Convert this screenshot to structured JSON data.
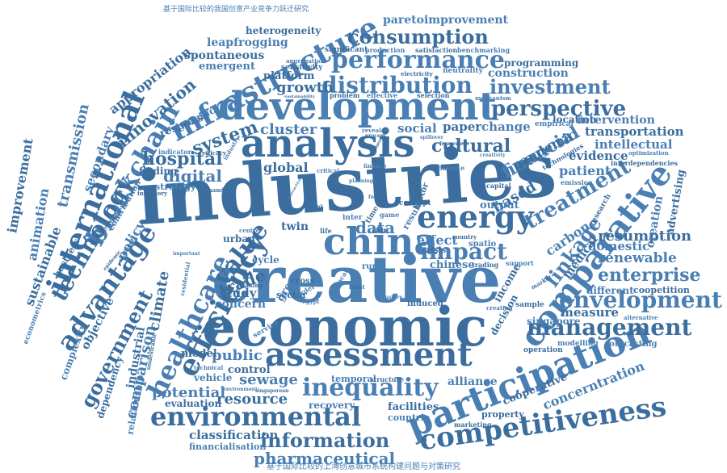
{
  "colors": {
    "word_primary": "#4a7fb3",
    "word_dark": "#3b6e9e",
    "background": "#ffffff"
  },
  "cloud": {
    "chinese_top": "基于国际比较的我国创意产业竞争力跃迁研究",
    "chinese_bottom": "基于国际比较的上海创意城市系统构建问题与对策研究",
    "words": {
      "industries": "industries",
      "creative": "creative",
      "economic": "economic",
      "development": "development",
      "analysis": "analysis",
      "china": "china",
      "assessment": "assessment",
      "participation": "participation",
      "competitiveness": "competitiveness",
      "comparative": "comparative",
      "environmental": "environmental",
      "infrastructure": "infrastructure",
      "international": "international",
      "blockchain": "blockchain",
      "energy": "energy",
      "performance": "performance",
      "consumption": "consumption",
      "distribution": "distribution",
      "management": "management",
      "envelopment": "envelopment",
      "efficiency": "efficiency",
      "healthcare": "healthcare",
      "advantage": "advantage",
      "inequality": "inequality",
      "information": "information",
      "pharmaceutical": "pharmaceutical",
      "technology": "technology",
      "impact": "impact",
      "value": "value",
      "treatment": "treatment",
      "perspective": "perspective",
      "investment": "investment",
      "innovation": "innovation",
      "linkage": "linkage",
      "government": "government",
      "enterprise": "enterprise",
      "resumption": "resumption",
      "renewable": "renewable",
      "cultural": "cultural",
      "financial": "financial",
      "hospital": "hospital",
      "digital": "digital",
      "system": "system",
      "cluster": "cluster",
      "growth": "growth",
      "data": "data",
      "trade": "trade",
      "sewage": "sewage",
      "resource": "resource",
      "potential": "potential",
      "classification": "classification",
      "public": "public",
      "control": "control",
      "concern": "concern",
      "study": "study",
      "comparison": "comparison",
      "climate": "climate",
      "transmission": "transmission",
      "improvement": "improvement",
      "animation": "animation",
      "sustainable": "sustainable",
      "secondary": "secondary",
      "appropriation": "appropriation",
      "leapfrogging": "leapfrogging",
      "spontaneous": "spontaneous",
      "emergent": "emergent",
      "platform": "platform",
      "paretoimprovement": "paretoimprovement",
      "heterogeneity": "heterogeneity",
      "construction": "construction",
      "programming": "programming",
      "intervention": "intervention",
      "transportation": "transportation",
      "intellectual": "intellectual",
      "evidence": "evidence",
      "patient": "patient",
      "pandemic": "pandemic",
      "carbon": "carbon",
      "measure": "measure",
      "domestic": "domestic",
      "medical": "medical",
      "concerntration": "concerntration",
      "cooperative": "cooperative",
      "alliance": "alliance",
      "facilities": "facilities",
      "recovery": "recovery",
      "evaluation": "evaluation",
      "vehicle": "vehicle",
      "model": "model",
      "policy": "policy",
      "objective": "objective",
      "complexity": "complexity",
      "dependency": "dependency",
      "relationship": "relationship",
      "industrial": "industrial",
      "social": "social",
      "paper": "paper",
      "change": "change",
      "global": "global",
      "effect": "effect",
      "based": "based",
      "output": "output",
      "twin": "twin",
      "cycle": "cycle",
      "location": "location",
      "empirical": "empirical",
      "response": "response",
      "dynamic": "dynamic",
      "finding": "finding",
      "strategy": "strategy",
      "urban": "urban",
      "green": "green",
      "sector": "sector",
      "chinese": "chinese",
      "income": "income",
      "different": "different",
      "coopetition": "coopetition",
      "creation": "creation",
      "advertising": "advertising",
      "singapore": "singapore",
      "decision": "decision",
      "forecasting": "forecasting",
      "operation": "operation",
      "modelling": "modelling",
      "property": "property",
      "countrie": "countrie",
      "marketing": "marketing",
      "temporal": "temporal",
      "structure": "structure",
      "financialisation": "financialisation",
      "significant": "significant",
      "production": "production",
      "satisfaction": "satisfaction",
      "benchmarking": "benchmarking",
      "sensitivity": "sensitivity",
      "neutrality": "neutrality",
      "electricity": "electricity",
      "aggregation": "aggregation",
      "problem": "problem",
      "effective": "effective",
      "selection": "selection",
      "mechanism": "mechanism",
      "interdependencies": "interdependencies",
      "optimization": "optimization",
      "technologies": "technologies",
      "emission": "emission",
      "research": "research",
      "alternative": "alternative",
      "crisis": "crisis",
      "rural": "rural",
      "trading": "trading",
      "support": "support",
      "sample": "sample",
      "creating": "creating",
      "induced": "induced",
      "service": "service",
      "business": "business",
      "econometrics": "econometrics",
      "wastewater": "wastewater",
      "contribution": "contribution",
      "inventory": "inventory",
      "indicator": "indicator",
      "efficacy": "efficacy",
      "industry": "industry",
      "capital": "capital",
      "finance": "finance",
      "concept": "concept",
      "result": "result",
      "factor": "factor",
      "spatio": "spatio",
      "country": "country",
      "inter": "inter",
      "time": "time",
      "game": "game",
      "life": "life",
      "centre": "centre",
      "making": "making",
      "order": "order",
      "cross": "cross",
      "local": "local",
      "front": "front",
      "critical": "critical",
      "demand": "demand",
      "revealed": "revealed",
      "process": "process",
      "spillover": "spillover",
      "market": "market",
      "environment": "environment",
      "singaporean": "singaporean",
      "technical": "technical",
      "undesirable": "undesirable",
      "residential": "residential",
      "resilient": "resilient",
      "important": "important",
      "epidemic": "epidemic",
      "nature": "nature",
      "energetic": "energetic",
      "bauxite": "bauxite",
      "framework": "framework",
      "creativity": "creativity",
      "fuel": "fuel",
      "egypt": "egypt",
      "sustainability": "sustainability",
      "planning": "planning",
      "bank": "bank",
      "interactive": "interactive",
      "cost": "cost"
    }
  }
}
